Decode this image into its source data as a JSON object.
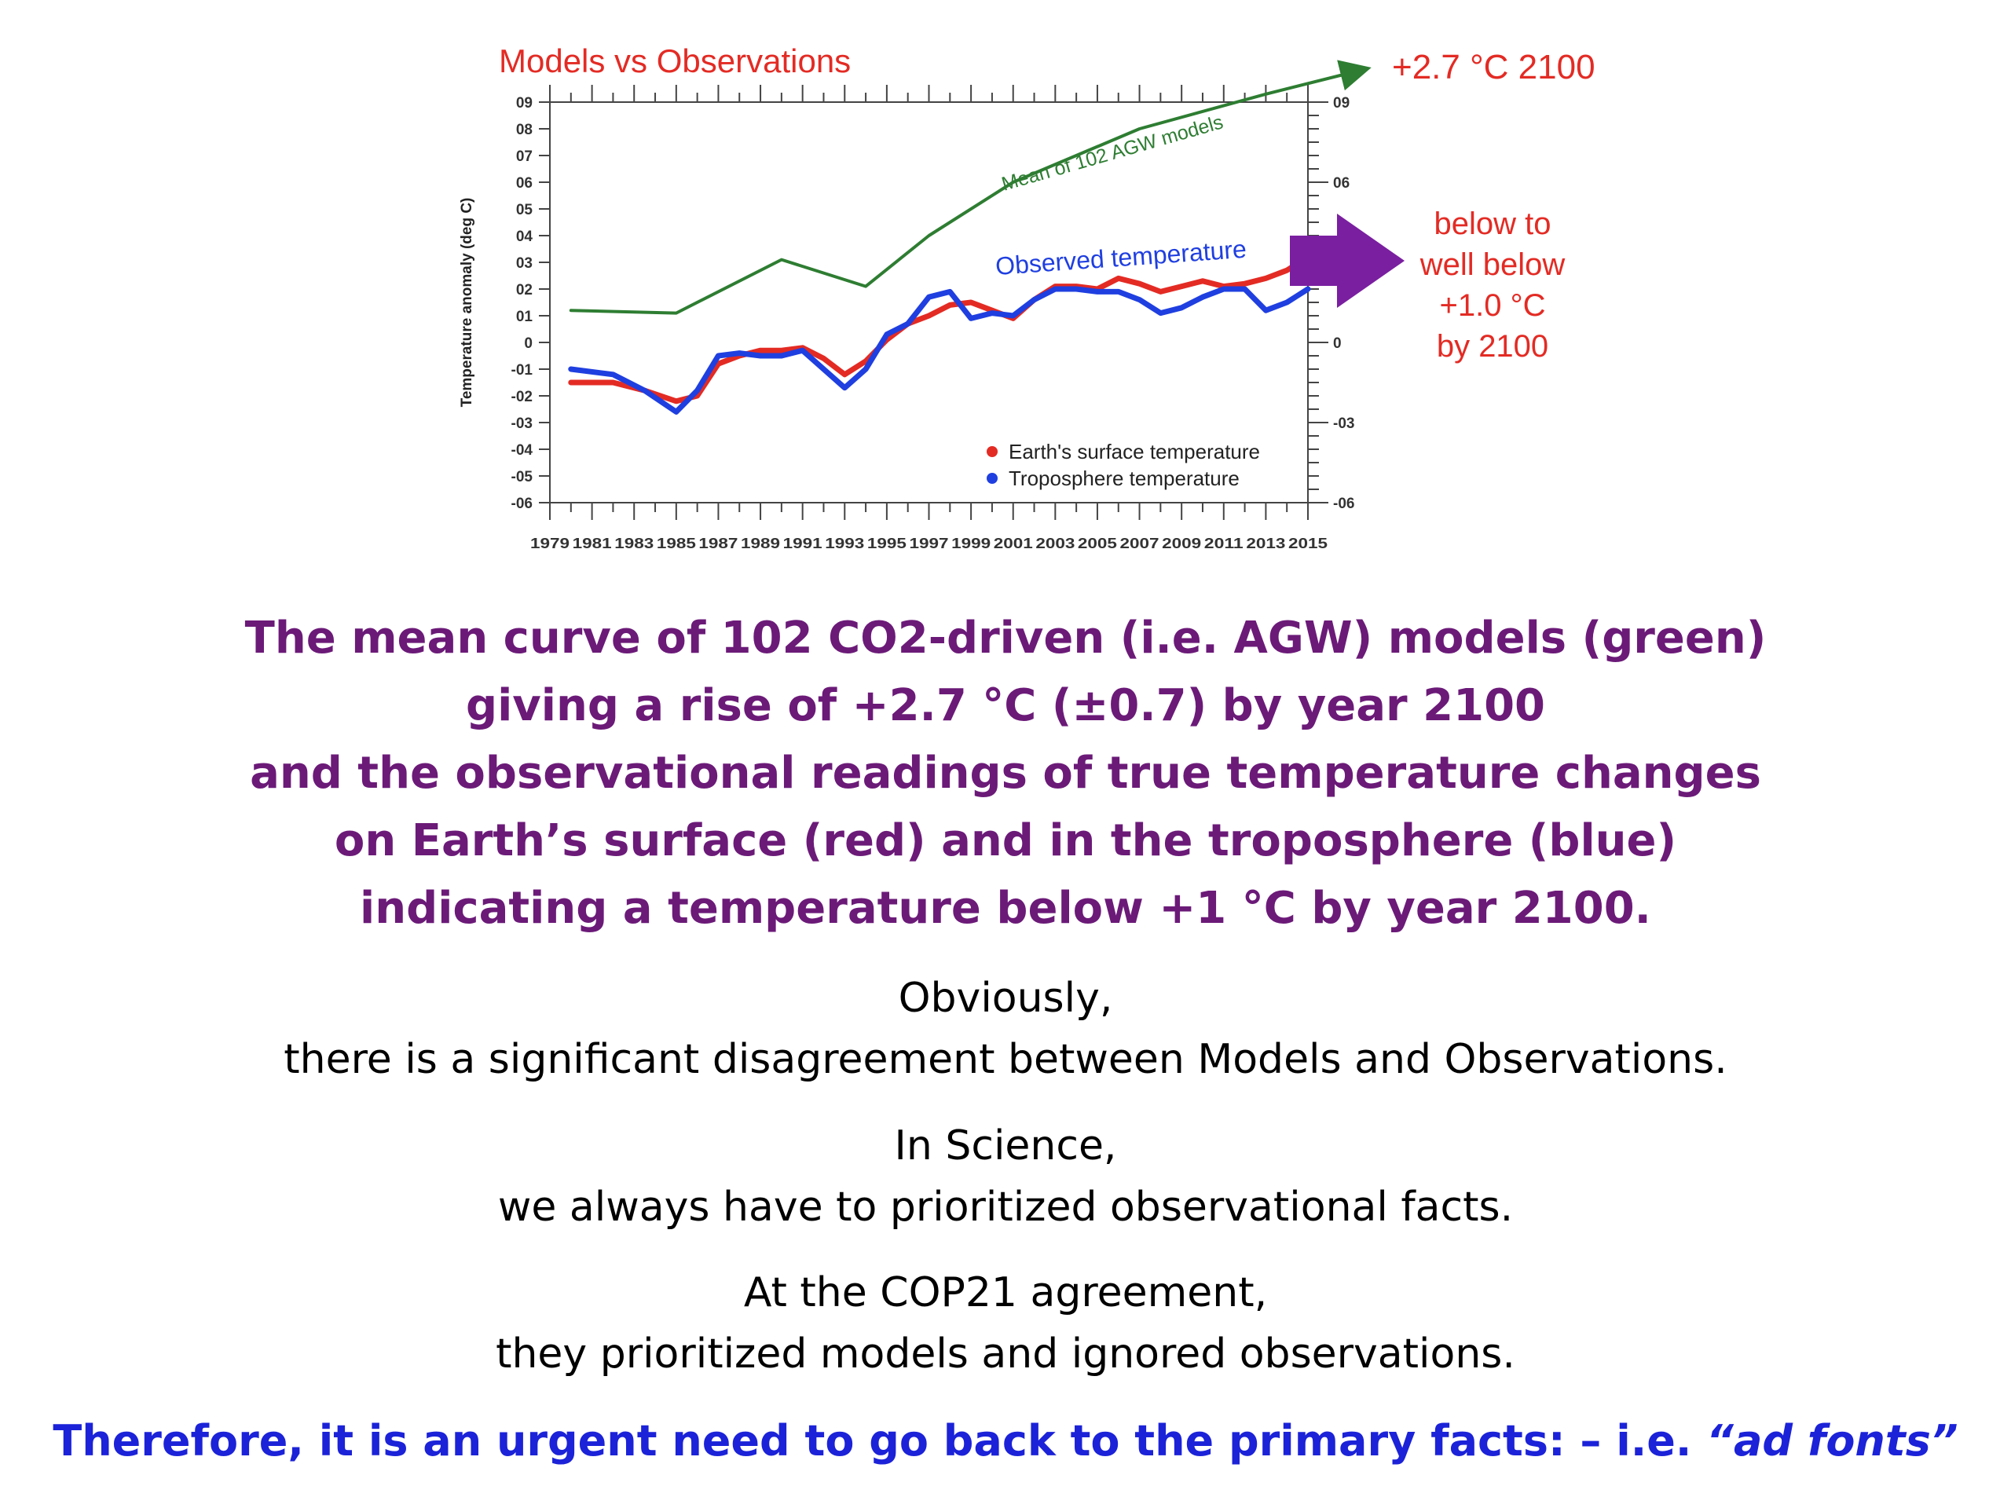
{
  "chart_data": {
    "type": "line",
    "title": "Models vs Observations",
    "ylabel": "Temperature anomaly (deg C)",
    "ylim": [
      -0.6,
      0.9
    ],
    "yticks_left": [
      "09",
      "08",
      "07",
      "06",
      "05",
      "04",
      "03",
      "02",
      "01",
      "0",
      "-01",
      "-02",
      "-03",
      "-04",
      "-05",
      "-06"
    ],
    "yticks_right": [
      "09",
      "06",
      "0",
      "-03",
      "-06"
    ],
    "xlim": [
      1979,
      2015
    ],
    "xticks": [
      "1979",
      "1981",
      "1983",
      "1985",
      "1987",
      "1989",
      "1991",
      "1993",
      "1995",
      "1997",
      "1999",
      "2001",
      "2003",
      "2005",
      "2007",
      "2009",
      "2011",
      "2013",
      "2015"
    ],
    "series": [
      {
        "name": "Mean of 102 AGW models",
        "color": "#2e7d32",
        "x": [
          1980,
          1985,
          1990,
          1994,
          1997,
          2001,
          2007,
          2013
        ],
        "y": [
          0.12,
          0.11,
          0.31,
          0.21,
          0.4,
          0.6,
          0.8,
          0.93
        ]
      },
      {
        "name": "Earth's surface temperature",
        "color": "#e32b24",
        "x": [
          1980,
          1982,
          1983.5,
          1985,
          1986,
          1987,
          1988,
          1989,
          1990,
          1991,
          1992,
          1993,
          1994,
          1995,
          1996,
          1997,
          1998,
          1999,
          2000,
          2001,
          2002,
          2003,
          2004,
          2005,
          2006,
          2007,
          2008,
          2009,
          2010,
          2011,
          2012,
          2013,
          2014,
          2015
        ],
        "y": [
          -0.15,
          -0.15,
          -0.18,
          -0.22,
          -0.2,
          -0.08,
          -0.05,
          -0.03,
          -0.03,
          -0.02,
          -0.06,
          -0.12,
          -0.07,
          0.01,
          0.07,
          0.1,
          0.14,
          0.15,
          0.12,
          0.09,
          0.16,
          0.21,
          0.21,
          0.2,
          0.24,
          0.22,
          0.19,
          0.21,
          0.23,
          0.21,
          0.22,
          0.24,
          0.27,
          0.32
        ]
      },
      {
        "name": "Troposphere temperature",
        "color": "#1f3fe0",
        "x": [
          1980,
          1982,
          1983.5,
          1985,
          1986,
          1987,
          1988,
          1989,
          1990,
          1991,
          1992,
          1993,
          1994,
          1995,
          1996,
          1997,
          1998,
          1999,
          2000,
          2001,
          2002,
          2003,
          2004,
          2005,
          2006,
          2007,
          2008,
          2009,
          2010,
          2011,
          2012,
          2013,
          2014,
          2015
        ],
        "y": [
          -0.1,
          -0.12,
          -0.18,
          -0.26,
          -0.18,
          -0.05,
          -0.04,
          -0.05,
          -0.05,
          -0.03,
          -0.1,
          -0.17,
          -0.1,
          0.03,
          0.07,
          0.17,
          0.19,
          0.09,
          0.11,
          0.1,
          0.16,
          0.2,
          0.2,
          0.19,
          0.19,
          0.16,
          0.11,
          0.13,
          0.17,
          0.2,
          0.2,
          0.12,
          0.15,
          0.2
        ]
      }
    ],
    "annotations": {
      "models_label": "Mean of 102 AGW models",
      "observed_label": "Observed temperature",
      "projection_models": "+2.7 °C  2100",
      "projection_obs": [
        "below to",
        "well below",
        "+1.0 °C",
        "by 2100"
      ]
    },
    "legend": {
      "position": "bottom-right",
      "items": [
        "Earth's surface temperature",
        "Troposphere temperature"
      ]
    },
    "grid": false
  },
  "colors": {
    "title_red": "#e32b24",
    "green": "#2e7d32",
    "blue": "#1f3fe0",
    "purple_arrow": "#7a1fa0",
    "headline_purple": "#6b1a78",
    "final_blue": "#1b22d8"
  },
  "text": {
    "headline": [
      "The mean curve of 102 CO2-driven (i.e. AGW) models (green)",
      "giving a rise of +2.7 °C (±0.7) by year 2100",
      "and the observational readings of true temperature changes",
      "on Earth’s surface (red) and in the troposphere (blue)",
      "indicating a temperature below +1 °C by year 2100."
    ],
    "p1": [
      "Obviously,",
      "there is a significant disagreement between Models and Observations."
    ],
    "p2": [
      "In Science,",
      "we always have to prioritized observational facts."
    ],
    "p3": [
      "At the COP21 agreement,",
      "they prioritized models and ignored observations."
    ],
    "final_main": "Therefore, it is an urgent need to go back to the primary facts: – i.e. ",
    "final_quote": "“ad fonts”"
  }
}
